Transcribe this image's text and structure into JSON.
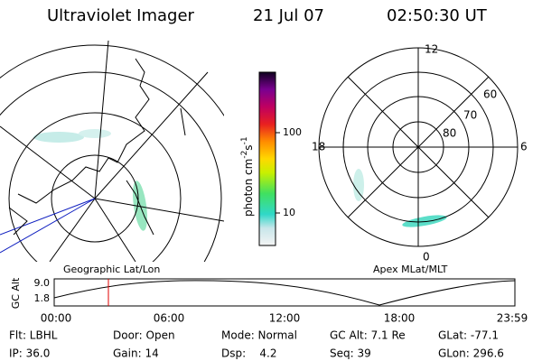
{
  "header": {
    "instrument": "Ultraviolet Imager",
    "date": "21 Jul 07",
    "time": "02:50:30 UT"
  },
  "colorbar": {
    "unit": "photon cm",
    "exp1": "-2",
    "unit2": "s",
    "exp2": "-1",
    "ticks": [
      "100",
      "10"
    ]
  },
  "polar": {
    "mlt_labels": [
      "12",
      "6",
      "0",
      "18"
    ],
    "lat_labels": [
      "60",
      "70",
      "80"
    ]
  },
  "strip": {
    "left_title": "Geographic Lat/Lon",
    "right_title": "Apex MLat/MLT",
    "y_label": "GC Alt",
    "y_ticks": [
      "9.0",
      "1.8"
    ],
    "x_ticks": [
      "00:00",
      "06:00",
      "12:00",
      "18:00",
      "23:59"
    ]
  },
  "info": {
    "rows": [
      [
        "Flt: LBHL",
        "Door: Open",
        "Mode: Normal",
        "GC Alt: 7.1 Re",
        "GLat: -77.1"
      ],
      [
        "IP: 36.0",
        "Gain: 14",
        "Dsp:    4.2",
        "Seq: 39",
        "GLon: 296.6"
      ]
    ]
  }
}
